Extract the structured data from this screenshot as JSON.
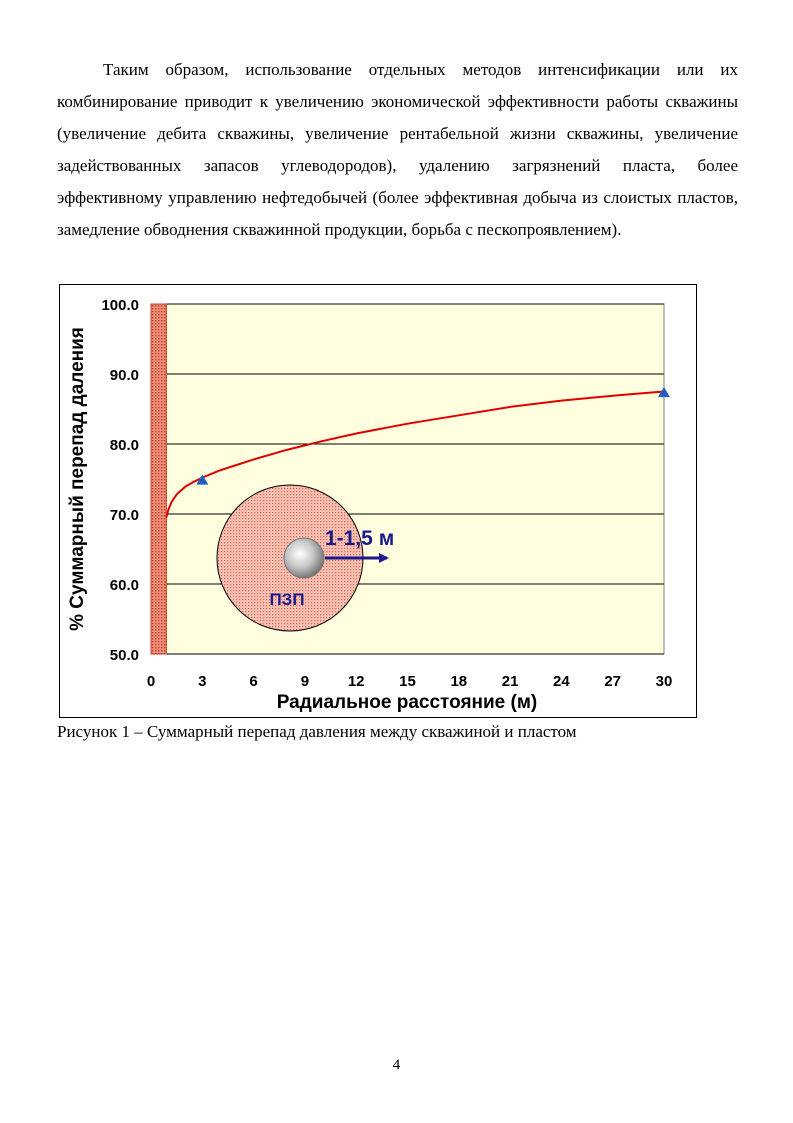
{
  "paragraph": "Таким образом, использование отдельных методов интенсификации или их комбинирование приводит к увеличению экономической эффективности работы скважины (увеличение дебита скважины, увеличение рентабельной жизни скважины, увеличение задействованных запасов углеводородов), удалению загрязнений пласта, более эффективному управлению нефтедобычей (более эффективная добыча из слоистых пластов, замедление обводнения скважинной продукции, борьба с пескопроявлением).",
  "caption": "Рисунок 1 – Суммарный перепад давления между скважиной и пластом",
  "page_number": "4",
  "chart_data": {
    "type": "line",
    "xlabel": "Радиальное расстояние (м)",
    "ylabel": "% Суммарный перепад даления",
    "xlim": [
      0,
      30
    ],
    "ylim": [
      50,
      100
    ],
    "x_ticks": [
      "0",
      "3",
      "6",
      "9",
      "12",
      "15",
      "18",
      "21",
      "24",
      "27",
      "30"
    ],
    "y_ticks": [
      "50.0",
      "60.0",
      "70.0",
      "80.0",
      "90.0",
      "100.0"
    ],
    "grid": "horizontal",
    "background": "#ffffe0",
    "series": [
      {
        "color": "#e00000",
        "x": [
          0.9,
          1.0,
          1.2,
          1.5,
          2.0,
          2.5,
          3.0,
          4,
          5,
          6,
          8,
          10,
          12,
          15,
          18,
          21,
          24,
          27,
          30
        ],
        "y": [
          69.5,
          70.5,
          71.7,
          72.8,
          73.9,
          74.6,
          75.2,
          76.2,
          77.0,
          77.8,
          79.2,
          80.4,
          81.5,
          82.9,
          84.1,
          85.3,
          86.2,
          86.9,
          87.5
        ]
      }
    ],
    "markers": {
      "shape": "triangle",
      "color": "#1f5fbf",
      "points": [
        {
          "x": 3,
          "y": 74.8
        },
        {
          "x": 30,
          "y": 87.3
        }
      ]
    },
    "wellbore_band": {
      "x_range": [
        0,
        0.9
      ],
      "color": "#e86b55"
    },
    "inset": {
      "zone_label": "ПЗП",
      "radius_label": "1-1,5 м",
      "zone_color": "#f4b8a8",
      "label_color": "#1a1a8c"
    }
  }
}
